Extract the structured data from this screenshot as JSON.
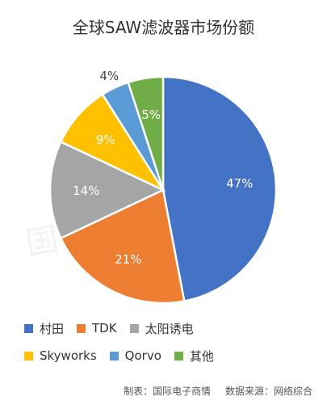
{
  "chart_data": {
    "type": "pie",
    "title": "全球SAW滤波器市场份额",
    "categories": [
      "村田",
      "TDK",
      "太阳诱电",
      "Skyworks",
      "Qorvo",
      "其他"
    ],
    "values": [
      47,
      21,
      14,
      9,
      4,
      5
    ],
    "labels": [
      "47%",
      "21%",
      "14%",
      "9%",
      "4%",
      "5%"
    ],
    "colors": [
      "#4472C4",
      "#ED7D31",
      "#A5A5A5",
      "#FFC000",
      "#5B9BD5",
      "#70AD47"
    ],
    "legend_position": "bottom"
  },
  "legend": {
    "items": [
      "村田",
      "TDK",
      "太阳诱电",
      "Skyworks",
      "Qorvo",
      "其他"
    ]
  },
  "watermark": "国际电子商情",
  "footer": {
    "made_by": "制表：国际电子商情",
    "source": "数据来源：网络综合"
  }
}
